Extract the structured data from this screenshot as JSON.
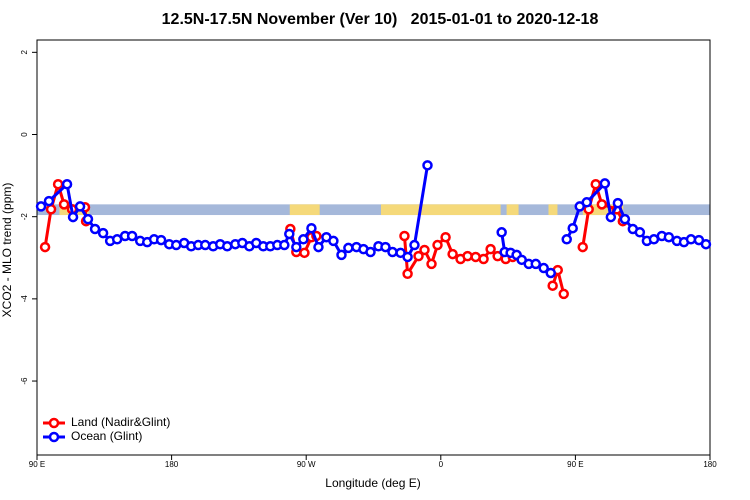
{
  "chart_data": {
    "type": "line",
    "title": "12.5N-17.5N November (Ver 10)   2015-01-01 to 2020-12-18",
    "x_label": "Longitude (deg E)",
    "y_label": "XCO2 - MLO trend (ppm)",
    "xlim": [
      90,
      540
    ],
    "ylim": [
      -7.8,
      2.3
    ],
    "xticks": [
      {
        "value": 90,
        "label": "90 E"
      },
      180,
      {
        "value": 270,
        "label": "90 W"
      },
      {
        "value": 360,
        "label": "0"
      },
      {
        "value": 450,
        "label": "90 E"
      },
      {
        "value": 540,
        "label": "180"
      }
    ],
    "yticks": [
      2,
      0,
      -2,
      -4,
      -6
    ],
    "legend": "bottomleft",
    "band": {
      "ymin": -1.96,
      "ymax": -1.7,
      "color": "#a5b8da",
      "land_color": "#f5d97a",
      "land_ranges": [
        [
          105,
          125
        ],
        [
          259,
          279
        ],
        [
          320,
          400
        ],
        [
          404,
          412
        ],
        [
          432,
          438
        ],
        [
          455,
          482
        ]
      ]
    },
    "series": [
      {
        "name": "Land (Nadir&Glint)",
        "color": "#ff0000",
        "x": [
          95.4,
          99.4,
          104.1,
          108.1,
          113.4,
          122.1,
          122.8,
          null,
          259.4,
          263.4,
          268.8,
          273.5,
          276.8,
          null,
          335.7,
          337.8,
          345.1,
          349.1,
          353.8,
          357.8,
          363.2,
          367.9,
          373.2,
          377.9,
          383.3,
          388.6,
          393.3,
          398.0,
          403.4,
          408.1,
          null,
          434.8,
          438.2,
          442.2,
          null,
          454.9,
          458.9,
          463.6,
          467.7,
          477.7,
          481.7
        ],
        "values": [
          -2.74,
          -1.82,
          -1.21,
          -1.7,
          -1.82,
          -1.77,
          -2.11,
          null,
          -2.3,
          -2.86,
          -2.88,
          -2.5,
          -2.47,
          null,
          -2.47,
          -3.39,
          -2.96,
          -2.81,
          -3.15,
          -2.69,
          -2.5,
          -2.91,
          -3.03,
          -2.96,
          -2.98,
          -3.03,
          -2.79,
          -2.96,
          -3.03,
          -2.98,
          null,
          -3.68,
          -3.3,
          -3.88,
          null,
          -2.74,
          -1.82,
          -1.21,
          -1.7,
          -1.82,
          -2.11
        ]
      },
      {
        "name": "Ocean (Glint)",
        "color": "#0000ff",
        "x": [
          92.7,
          98.0,
          110.1,
          114.1,
          118.8,
          124.1,
          128.8,
          134.2,
          138.9,
          143.6,
          148.9,
          153.6,
          159.0,
          163.7,
          168.3,
          173.0,
          178.4,
          183.1,
          188.4,
          193.1,
          197.8,
          202.5,
          207.8,
          212.5,
          217.2,
          222.6,
          227.3,
          232.0,
          236.6,
          241.3,
          246.0,
          250.7,
          255.4,
          258.7,
          263.4,
          268.1,
          273.5,
          278.2,
          283.5,
          288.2,
          293.6,
          298.2,
          303.6,
          308.3,
          313.0,
          318.3,
          323.0,
          327.7,
          333.1,
          337.8,
          342.4,
          351.1,
          null,
          400.7,
          402.7,
          406.7,
          410.7,
          414.1,
          418.8,
          423.5,
          428.8,
          433.5,
          null,
          444.2,
          448.2,
          452.9,
          457.6,
          469.7,
          473.7,
          478.4,
          483.1,
          488.4,
          493.1,
          497.8,
          502.5,
          507.8,
          512.5,
          517.9,
          522.6,
          527.3,
          532.6,
          537.3
        ],
        "values": [
          -1.75,
          -1.62,
          -1.21,
          -2.01,
          -1.75,
          -2.06,
          -2.3,
          -2.4,
          -2.59,
          -2.55,
          -2.47,
          -2.47,
          -2.59,
          -2.62,
          -2.55,
          -2.57,
          -2.67,
          -2.69,
          -2.64,
          -2.72,
          -2.69,
          -2.69,
          -2.72,
          -2.67,
          -2.72,
          -2.67,
          -2.64,
          -2.72,
          -2.64,
          -2.72,
          -2.72,
          -2.69,
          -2.69,
          -2.42,
          -2.74,
          -2.55,
          -2.28,
          -2.74,
          -2.5,
          -2.59,
          -2.93,
          -2.76,
          -2.74,
          -2.79,
          -2.86,
          -2.72,
          -2.74,
          -2.86,
          -2.88,
          -2.98,
          -2.69,
          -0.75,
          null,
          -2.38,
          -2.86,
          -2.88,
          -2.93,
          -3.05,
          -3.15,
          -3.15,
          -3.25,
          -3.37,
          null,
          -2.55,
          -2.28,
          -1.75,
          -1.65,
          -1.19,
          -2.01,
          -1.67,
          -2.06,
          -2.3,
          -2.38,
          -2.59,
          -2.55,
          -2.47,
          -2.5,
          -2.59,
          -2.62,
          -2.55,
          -2.57,
          -2.67
        ]
      }
    ]
  }
}
